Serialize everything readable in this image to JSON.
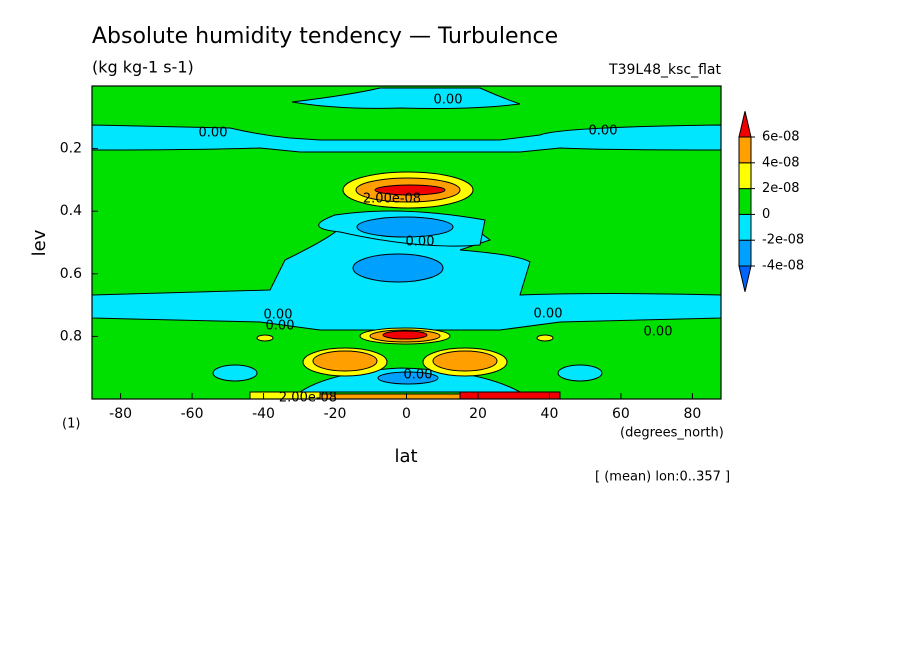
{
  "chart_data": {
    "type": "contour",
    "title": "Absolute humidity tendency — Turbulence",
    "subtitle": "(kg kg-1 s-1)",
    "run_label": "T39L48_ksc_flat",
    "x_label": "lat",
    "x_unit": "(degrees_north)",
    "y_label": "lev",
    "y_unit": "(1)",
    "note": "[ (mean) lon:0..357 ]",
    "xlim": [
      -88,
      88
    ],
    "xticks": [
      -80,
      -60,
      -40,
      -20,
      0,
      20,
      40,
      60,
      80
    ],
    "ylim": [
      1,
      0
    ],
    "yticks": [
      0.2,
      0.4,
      0.6,
      0.8
    ],
    "colorbar_levels": [
      {
        "value": -4e-08,
        "label": "-4e-08"
      },
      {
        "value": -2e-08,
        "label": "-2e-08"
      },
      0,
      {
        "value": 2e-08,
        "label": "2e-08"
      },
      {
        "value": 4e-08,
        "label": "4e-08"
      },
      {
        "value": 6e-08,
        "label": "6e-08"
      }
    ],
    "colors": [
      "#0064ff",
      "#00a0ff",
      "#00e6ff",
      "#00e000",
      "#ffff00",
      "#ffa000",
      "#f00000"
    ],
    "contour_labels": [
      "0.00",
      "0.00",
      "0.00",
      "2.00e-08",
      "0.00",
      "0.00",
      "0.00",
      "0.00",
      "0.00",
      "0.00",
      "2.00e-08"
    ]
  }
}
